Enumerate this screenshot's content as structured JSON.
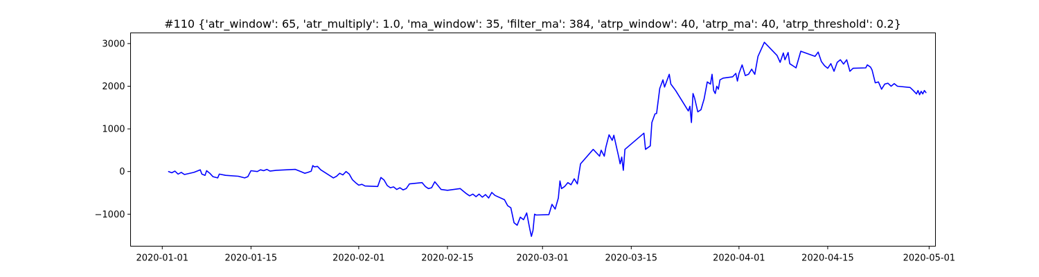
{
  "chart_data": {
    "type": "line",
    "title": "#110 {'atr_window': 65, 'atr_multiply': 1.0, 'ma_window': 35, 'filter_ma': 384, 'atrp_window': 40, 'atrp_ma': 40, 'atrp_threshold': 0.2}",
    "xlabel": "",
    "ylabel": "",
    "grid": false,
    "legend": "none",
    "xlim": [
      "2019-12-27",
      "2020-05-02"
    ],
    "ylim": [
      -1750,
      3250
    ],
    "x_ticks": [
      {
        "value": "2020-01-01",
        "label": "2020-01-01"
      },
      {
        "value": "2020-01-15",
        "label": "2020-01-15"
      },
      {
        "value": "2020-02-01",
        "label": "2020-02-01"
      },
      {
        "value": "2020-02-15",
        "label": "2020-02-15"
      },
      {
        "value": "2020-03-01",
        "label": "2020-03-01"
      },
      {
        "value": "2020-03-15",
        "label": "2020-03-15"
      },
      {
        "value": "2020-04-01",
        "label": "2020-04-01"
      },
      {
        "value": "2020-04-15",
        "label": "2020-04-15"
      },
      {
        "value": "2020-05-01",
        "label": "2020-05-01"
      }
    ],
    "y_ticks": [
      {
        "value": 3000,
        "label": "3000"
      },
      {
        "value": 2000,
        "label": "2000"
      },
      {
        "value": 1000,
        "label": "1000"
      },
      {
        "value": 0,
        "label": "0"
      },
      {
        "value": -1000,
        "label": "−1000"
      }
    ],
    "series": [
      {
        "color": "#0000ff",
        "points": [
          [
            "2020-01-02",
            0
          ],
          [
            "2020-01-02 12:00",
            -30
          ],
          [
            "2020-01-03",
            10
          ],
          [
            "2020-01-03 12:00",
            -60
          ],
          [
            "2020-01-04",
            -20
          ],
          [
            "2020-01-04 12:00",
            -70
          ],
          [
            "2020-01-06",
            -20
          ],
          [
            "2020-01-07",
            40
          ],
          [
            "2020-01-07 06:00",
            -60
          ],
          [
            "2020-01-07 18:00",
            -90
          ],
          [
            "2020-01-08",
            20
          ],
          [
            "2020-01-08 12:00",
            -40
          ],
          [
            "2020-01-09",
            -120
          ],
          [
            "2020-01-09 18:00",
            -150
          ],
          [
            "2020-01-10",
            -60
          ],
          [
            "2020-01-11",
            -90
          ],
          [
            "2020-01-13",
            -110
          ],
          [
            "2020-01-14",
            -150
          ],
          [
            "2020-01-14 12:00",
            -120
          ],
          [
            "2020-01-15",
            20
          ],
          [
            "2020-01-16",
            0
          ],
          [
            "2020-01-16 12:00",
            40
          ],
          [
            "2020-01-17",
            20
          ],
          [
            "2020-01-17 12:00",
            50
          ],
          [
            "2020-01-18",
            10
          ],
          [
            "2020-01-19",
            30
          ],
          [
            "2020-01-22",
            50
          ],
          [
            "2020-01-23",
            -10
          ],
          [
            "2020-01-23 12:00",
            -40
          ],
          [
            "2020-01-24",
            -20
          ],
          [
            "2020-01-24 12:00",
            10
          ],
          [
            "2020-01-24 18:00",
            140
          ],
          [
            "2020-01-25",
            110
          ],
          [
            "2020-01-25 12:00",
            120
          ],
          [
            "2020-01-26",
            40
          ],
          [
            "2020-01-28",
            -150
          ],
          [
            "2020-01-28 12:00",
            -110
          ],
          [
            "2020-01-29",
            -40
          ],
          [
            "2020-01-29 12:00",
            -80
          ],
          [
            "2020-01-30",
            0
          ],
          [
            "2020-01-30 12:00",
            -60
          ],
          [
            "2020-01-31",
            -190
          ],
          [
            "2020-01-31 12:00",
            -260
          ],
          [
            "2020-02-01",
            -320
          ],
          [
            "2020-02-01 12:00",
            -300
          ],
          [
            "2020-02-02",
            -340
          ],
          [
            "2020-02-04",
            -350
          ],
          [
            "2020-02-04 12:00",
            -140
          ],
          [
            "2020-02-05",
            -200
          ],
          [
            "2020-02-05 12:00",
            -330
          ],
          [
            "2020-02-06",
            -380
          ],
          [
            "2020-02-06 12:00",
            -360
          ],
          [
            "2020-02-07",
            -420
          ],
          [
            "2020-02-07 12:00",
            -380
          ],
          [
            "2020-02-08",
            -430
          ],
          [
            "2020-02-08 12:00",
            -400
          ],
          [
            "2020-02-09",
            -290
          ],
          [
            "2020-02-11",
            -260
          ],
          [
            "2020-02-11 12:00",
            -350
          ],
          [
            "2020-02-12",
            -400
          ],
          [
            "2020-02-12 12:00",
            -380
          ],
          [
            "2020-02-13",
            -240
          ],
          [
            "2020-02-13 12:00",
            -330
          ],
          [
            "2020-02-14",
            -420
          ],
          [
            "2020-02-15",
            -440
          ],
          [
            "2020-02-17",
            -400
          ],
          [
            "2020-02-18",
            -520
          ],
          [
            "2020-02-18 12:00",
            -570
          ],
          [
            "2020-02-19",
            -530
          ],
          [
            "2020-02-19 12:00",
            -590
          ],
          [
            "2020-02-20",
            -530
          ],
          [
            "2020-02-20 12:00",
            -600
          ],
          [
            "2020-02-21",
            -540
          ],
          [
            "2020-02-21 12:00",
            -620
          ],
          [
            "2020-02-22",
            -490
          ],
          [
            "2020-02-22 12:00",
            -560
          ],
          [
            "2020-02-24",
            -660
          ],
          [
            "2020-02-24 12:00",
            -800
          ],
          [
            "2020-02-25",
            -850
          ],
          [
            "2020-02-25 12:00",
            -1200
          ],
          [
            "2020-02-26",
            -1260
          ],
          [
            "2020-02-26 12:00",
            -1070
          ],
          [
            "2020-02-27",
            -1130
          ],
          [
            "2020-02-27 12:00",
            -970
          ],
          [
            "2020-02-28",
            -1350
          ],
          [
            "2020-02-28 06:00",
            -1520
          ],
          [
            "2020-02-28 12:00",
            -1380
          ],
          [
            "2020-02-28 18:00",
            -1000
          ],
          [
            "2020-02-29",
            -1020
          ],
          [
            "2020-03-02",
            -1010
          ],
          [
            "2020-03-02 12:00",
            -770
          ],
          [
            "2020-03-03",
            -880
          ],
          [
            "2020-03-03 12:00",
            -620
          ],
          [
            "2020-03-03 18:00",
            -220
          ],
          [
            "2020-03-04",
            -400
          ],
          [
            "2020-03-04 12:00",
            -350
          ],
          [
            "2020-03-05",
            -260
          ],
          [
            "2020-03-05 12:00",
            -310
          ],
          [
            "2020-03-06",
            -170
          ],
          [
            "2020-03-06 12:00",
            -290
          ],
          [
            "2020-03-07",
            180
          ],
          [
            "2020-03-09",
            520
          ],
          [
            "2020-03-10",
            360
          ],
          [
            "2020-03-10 06:00",
            500
          ],
          [
            "2020-03-10 18:00",
            360
          ],
          [
            "2020-03-11",
            570
          ],
          [
            "2020-03-11 12:00",
            860
          ],
          [
            "2020-03-12",
            730
          ],
          [
            "2020-03-12 06:00",
            850
          ],
          [
            "2020-03-13",
            360
          ],
          [
            "2020-03-13 06:00",
            180
          ],
          [
            "2020-03-13 12:00",
            340
          ],
          [
            "2020-03-13 18:00",
            30
          ],
          [
            "2020-03-14",
            520
          ],
          [
            "2020-03-17",
            900
          ],
          [
            "2020-03-17 06:00",
            520
          ],
          [
            "2020-03-18",
            600
          ],
          [
            "2020-03-18 06:00",
            1150
          ],
          [
            "2020-03-18 18:00",
            1350
          ],
          [
            "2020-03-19",
            1360
          ],
          [
            "2020-03-19 12:00",
            1950
          ],
          [
            "2020-03-20",
            2150
          ],
          [
            "2020-03-20 06:00",
            1980
          ],
          [
            "2020-03-21",
            2280
          ],
          [
            "2020-03-21 06:00",
            2050
          ],
          [
            "2020-03-22",
            1900
          ],
          [
            "2020-03-24",
            1420
          ],
          [
            "2020-03-24 06:00",
            1530
          ],
          [
            "2020-03-24 12:00",
            1150
          ],
          [
            "2020-03-24 18:00",
            1830
          ],
          [
            "2020-03-25",
            1720
          ],
          [
            "2020-03-25 12:00",
            1400
          ],
          [
            "2020-03-26",
            1450
          ],
          [
            "2020-03-26 12:00",
            1700
          ],
          [
            "2020-03-27",
            2100
          ],
          [
            "2020-03-27 12:00",
            2050
          ],
          [
            "2020-03-27 18:00",
            2280
          ],
          [
            "2020-03-28",
            1900
          ],
          [
            "2020-03-28 06:00",
            1830
          ],
          [
            "2020-03-28 12:00",
            2000
          ],
          [
            "2020-03-28 18:00",
            1930
          ],
          [
            "2020-03-29",
            2150
          ],
          [
            "2020-03-29 12:00",
            2190
          ],
          [
            "2020-03-31",
            2220
          ],
          [
            "2020-03-31 12:00",
            2300
          ],
          [
            "2020-03-31 18:00",
            2120
          ],
          [
            "2020-04-01",
            2300
          ],
          [
            "2020-04-01 12:00",
            2500
          ],
          [
            "2020-04-02",
            2250
          ],
          [
            "2020-04-02 12:00",
            2280
          ],
          [
            "2020-04-03",
            2400
          ],
          [
            "2020-04-03 12:00",
            2280
          ],
          [
            "2020-04-04",
            2700
          ],
          [
            "2020-04-05",
            3030
          ],
          [
            "2020-04-07",
            2720
          ],
          [
            "2020-04-07 12:00",
            2560
          ],
          [
            "2020-04-08",
            2780
          ],
          [
            "2020-04-08 06:00",
            2620
          ],
          [
            "2020-04-08 18:00",
            2790
          ],
          [
            "2020-04-09",
            2530
          ],
          [
            "2020-04-10",
            2430
          ],
          [
            "2020-04-10 18:00",
            2820
          ],
          [
            "2020-04-13",
            2700
          ],
          [
            "2020-04-13 12:00",
            2800
          ],
          [
            "2020-04-14",
            2580
          ],
          [
            "2020-04-14 12:00",
            2480
          ],
          [
            "2020-04-15",
            2420
          ],
          [
            "2020-04-15 12:00",
            2530
          ],
          [
            "2020-04-16",
            2350
          ],
          [
            "2020-04-16 12:00",
            2560
          ],
          [
            "2020-04-17",
            2620
          ],
          [
            "2020-04-17 12:00",
            2520
          ],
          [
            "2020-04-18",
            2620
          ],
          [
            "2020-04-18 12:00",
            2350
          ],
          [
            "2020-04-19",
            2420
          ],
          [
            "2020-04-21",
            2430
          ],
          [
            "2020-04-21 06:00",
            2500
          ],
          [
            "2020-04-21 18:00",
            2450
          ],
          [
            "2020-04-22",
            2380
          ],
          [
            "2020-04-22 12:00",
            2080
          ],
          [
            "2020-04-23",
            2100
          ],
          [
            "2020-04-23 12:00",
            1930
          ],
          [
            "2020-04-24",
            2050
          ],
          [
            "2020-04-24 12:00",
            2070
          ],
          [
            "2020-04-25",
            2000
          ],
          [
            "2020-04-25 12:00",
            2060
          ],
          [
            "2020-04-26",
            2000
          ],
          [
            "2020-04-28",
            1970
          ],
          [
            "2020-04-28 12:00",
            1900
          ],
          [
            "2020-04-29",
            1820
          ],
          [
            "2020-04-29 06:00",
            1900
          ],
          [
            "2020-04-29 12:00",
            1800
          ],
          [
            "2020-04-29 18:00",
            1880
          ],
          [
            "2020-04-30",
            1820
          ],
          [
            "2020-04-30 06:00",
            1900
          ],
          [
            "2020-04-30 12:00",
            1850
          ]
        ]
      }
    ]
  }
}
